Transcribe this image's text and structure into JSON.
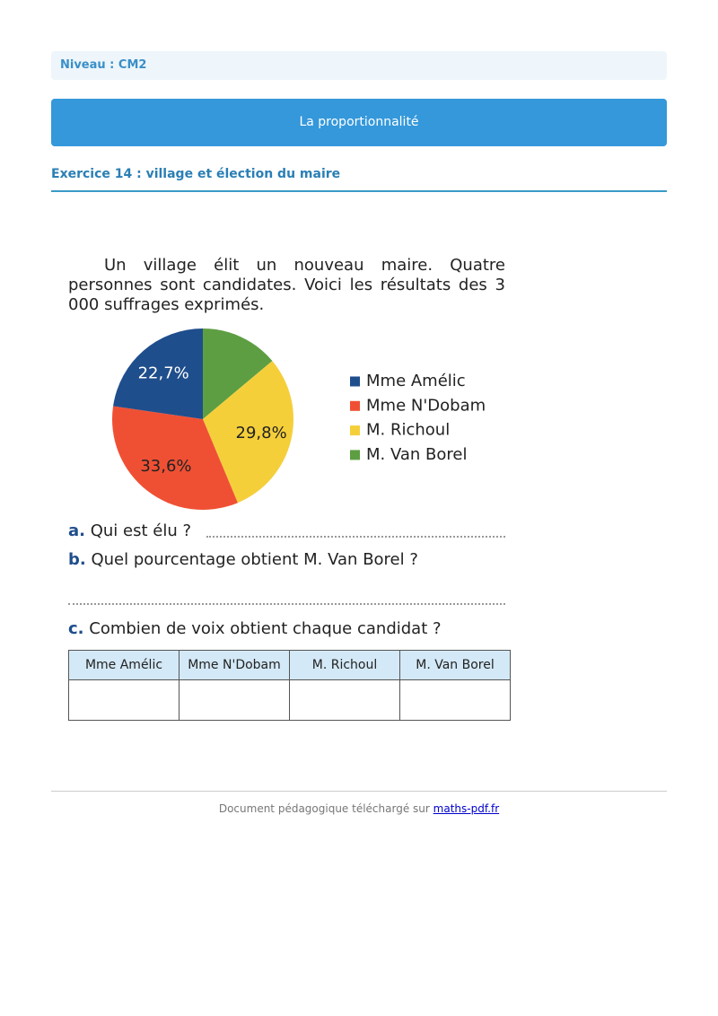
{
  "header": {
    "level": "Niveau : CM2",
    "banner": "La proportionnalité",
    "exercise_title": "Exercice 14 : village et élection du maire"
  },
  "intro": "Un village élit un nouveau maire. Quatre personnes sont candidates. Voici les résultats des 3 000 suffrages exprimés.",
  "chart_data": {
    "type": "pie",
    "categories": [
      "Mme Amélic",
      "Mme N'Dobam",
      "M. Richoul",
      "M. Van Borel"
    ],
    "values": [
      22.7,
      33.6,
      29.8,
      13.9
    ],
    "value_labels": [
      "22,7%",
      "33,6%",
      "29,8%",
      null
    ],
    "colors": [
      "#1f4e8c",
      "#ef5034",
      "#f5cf3a",
      "#5e9e43"
    ]
  },
  "questions": [
    {
      "letter": "a.",
      "text": "Qui est élu ?"
    },
    {
      "letter": "b.",
      "text": "Quel pourcentage obtient M. Van Borel ?"
    },
    {
      "letter": "c.",
      "text": "Combien de voix obtient chaque candidat ?"
    }
  ],
  "table": {
    "header": [
      "Mme Amélic",
      "Mme N'Dobam",
      "M. Richoul",
      "M. Van Borel"
    ]
  },
  "footer": {
    "text": "Document pédagogique téléchargé sur",
    "link": "maths-pdf.fr"
  }
}
